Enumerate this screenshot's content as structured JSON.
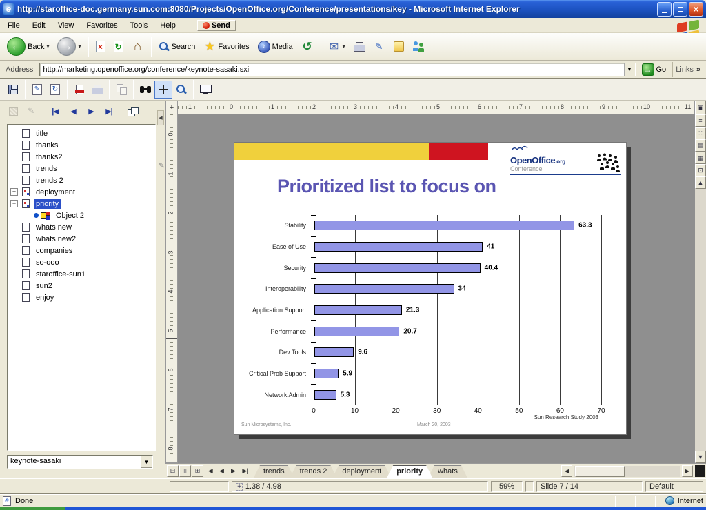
{
  "window": {
    "title": "http://staroffice-doc.germany.sun.com:8080/Projects/OpenOffice.org/Conference/presentations/key - Microsoft Internet Explorer"
  },
  "menu": {
    "items": [
      "File",
      "Edit",
      "View",
      "Favorites",
      "Tools",
      "Help"
    ],
    "send_label": "Send"
  },
  "ie_toolbar": {
    "buttons": [
      {
        "name": "back-button",
        "icon": "back-circle-icon",
        "glyph": "←",
        "label": "Back",
        "caret": true
      },
      {
        "name": "forward-button",
        "icon": "forward-circle-icon",
        "glyph": "→",
        "caret": true
      },
      {
        "sep": true
      },
      {
        "name": "stop-button",
        "icon": "stop-icon",
        "glyph": "×"
      },
      {
        "name": "refresh-button",
        "icon": "refresh-icon",
        "glyph": "↻"
      },
      {
        "name": "home-button",
        "icon": "home-icon",
        "glyph": "⌂"
      },
      {
        "sep": true
      },
      {
        "name": "search-button",
        "icon": "magnifier-icon",
        "label": "Search"
      },
      {
        "name": "favorites-button",
        "icon": "star-icon",
        "glyph": "★",
        "label": "Favorites"
      },
      {
        "name": "media-button",
        "icon": "media-globe-icon",
        "glyph": "♪",
        "label": "Media"
      },
      {
        "name": "history-button",
        "icon": "history-icon",
        "glyph": "↺"
      },
      {
        "sep": true
      },
      {
        "name": "mail-button",
        "icon": "mail-icon",
        "glyph": "✉",
        "caret": true
      },
      {
        "name": "print-button",
        "icon": "printer-icon"
      },
      {
        "name": "edit-button",
        "icon": "edit-page-icon",
        "glyph": "✎"
      },
      {
        "name": "discuss-button",
        "icon": "note-icon"
      },
      {
        "name": "messenger-button",
        "icon": "messenger-icon"
      }
    ]
  },
  "address_bar": {
    "label": "Address",
    "url": "http://marketing.openoffice.org/conference/keynote-sasaki.sxi",
    "go_label": "Go",
    "links_label": "Links",
    "chevron": "»",
    "drop_glyph": "▼",
    "go_glyph": "→"
  },
  "so_toolbar_top": {
    "buttons": [
      {
        "name": "save-button",
        "icon": "floppy-icon"
      },
      {
        "sep": true
      },
      {
        "name": "edit-file-button",
        "icon": "edit-file-icon",
        "glyph": "✎"
      },
      {
        "name": "reload-button",
        "icon": "reload-icon",
        "glyph": "↻"
      },
      {
        "sep": true
      },
      {
        "name": "export-pdf-button",
        "icon": "pdf-icon"
      },
      {
        "name": "print-file-button",
        "icon": "printer-icon"
      },
      {
        "sep": true
      },
      {
        "name": "copy-button",
        "icon": "copy-icon",
        "disabled": true
      },
      {
        "sep": true
      },
      {
        "name": "find-button",
        "icon": "binoculars-icon"
      },
      {
        "name": "pan-button",
        "icon": "crosshair-icon",
        "active": true
      },
      {
        "name": "zoom-button",
        "icon": "magnifier-icon"
      },
      {
        "sep": true
      },
      {
        "name": "presentation-button",
        "icon": "screen-icon"
      }
    ]
  },
  "so_toolbar_nav": {
    "buttons": [
      {
        "name": "fill-pattern-button",
        "icon": "fill-pattern-icon",
        "disabled": true
      },
      {
        "name": "edit-mode-button",
        "icon": "pencil-icon",
        "glyph": "✎",
        "disabled": true
      },
      {
        "sep": true
      },
      {
        "name": "first-slide-button",
        "icon": "first-icon",
        "glyph": "|◀"
      },
      {
        "name": "previous-slide-button",
        "icon": "prev-icon",
        "glyph": "◀"
      },
      {
        "name": "next-slide-button",
        "icon": "next-icon",
        "glyph": "▶"
      },
      {
        "name": "last-slide-button",
        "icon": "last-icon",
        "glyph": "▶|"
      },
      {
        "sep": true
      },
      {
        "name": "new-window-button",
        "icon": "new-window-icon"
      }
    ]
  },
  "sidebar": {
    "items": [
      {
        "label": "title",
        "icon": "page-icon"
      },
      {
        "label": "thanks",
        "icon": "page-icon"
      },
      {
        "label": "thanks2",
        "icon": "page-icon"
      },
      {
        "label": "trends",
        "icon": "page-icon"
      },
      {
        "label": "trends 2",
        "icon": "page-icon"
      },
      {
        "label": "deployment",
        "icon": "page-objects-icon",
        "expander": "plus"
      },
      {
        "label": "priority",
        "icon": "page-objects-icon",
        "expander": "minus",
        "selected": true
      },
      {
        "label": "Object 2",
        "icon": "ole-object-icon",
        "child": true
      },
      {
        "label": "whats new",
        "icon": "page-icon"
      },
      {
        "label": "whats new2",
        "icon": "page-icon"
      },
      {
        "label": "companies",
        "icon": "page-icon"
      },
      {
        "label": "so-ooo",
        "icon": "page-icon"
      },
      {
        "label": "staroffice-sun1",
        "icon": "page-icon"
      },
      {
        "label": "sun2",
        "icon": "page-icon"
      },
      {
        "label": "enjoy",
        "icon": "page-icon"
      }
    ],
    "document_combo": "keynote-sasaki",
    "combo_drop_glyph": "▼"
  },
  "slide": {
    "title": "Prioritized list to focus on",
    "title_color": "#5a55b2",
    "band_yellow": "#f0d03c",
    "band_red": "#cf1420",
    "logo": {
      "brand": "OpenOffice",
      "suffix": ".org",
      "subtitle": "Conference"
    },
    "footer_left": "Sun Microsystems, Inc.",
    "footer_center": "March 20, 2003",
    "note_right": "Sun Research Study 2003"
  },
  "chart_data": {
    "type": "bar",
    "orientation": "horizontal",
    "title": "Prioritized list to focus on",
    "categories": [
      "Stability",
      "Ease of Use",
      "Security",
      "Interoperability",
      "Application Support",
      "Performance",
      "Dev Tools",
      "Critical Prob Support",
      "Network Admin"
    ],
    "values": [
      63.3,
      41,
      40.4,
      34,
      21.3,
      20.7,
      9.6,
      5.9,
      5.3
    ],
    "value_labels": [
      "63.3",
      "41",
      "40.4",
      "34",
      "21.3",
      "20.7",
      "9.6",
      "5.9",
      "5.3"
    ],
    "xlim": [
      0,
      70
    ],
    "xticks": [
      0,
      10,
      20,
      30,
      40,
      50,
      60,
      70
    ],
    "xlabel": "",
    "ylabel": "",
    "bar_color": "#9295e6",
    "grid": true,
    "legend": null
  },
  "doc_tabs": {
    "view_buttons": [
      {
        "name": "tab-bar-view-button-1",
        "glyph": "⊟"
      },
      {
        "name": "tab-bar-view-button-2",
        "glyph": "▯"
      },
      {
        "name": "tab-bar-view-button-3",
        "glyph": "⊞"
      }
    ],
    "nav": [
      {
        "name": "first-tab-button",
        "glyph": "|◀"
      },
      {
        "name": "prev-tab-button",
        "glyph": "◀"
      },
      {
        "name": "next-tab-button",
        "glyph": "▶"
      },
      {
        "name": "last-tab-button",
        "glyph": "▶|"
      }
    ],
    "tabs": [
      "trends",
      "trends 2",
      "deployment",
      "priority",
      "whats"
    ],
    "active_tab": "priority",
    "scroll_left_glyph": "◀",
    "scroll_right_glyph": "▶"
  },
  "view_strip": {
    "top_button": {
      "name": "drawing-view-button",
      "glyph": "▣"
    },
    "buttons": [
      {
        "name": "outline-view-button",
        "glyph": "≡"
      },
      {
        "name": "slides-view-button",
        "glyph": "∷"
      },
      {
        "name": "notes-view-button",
        "glyph": "▤"
      },
      {
        "name": "handout-view-button",
        "glyph": "▦"
      },
      {
        "name": "slide-show-button",
        "glyph": "⊡"
      }
    ],
    "scroll_up_glyph": "▲",
    "scroll_down_glyph": "▼"
  },
  "so_statusbar": {
    "position": "1.38 / 4.98",
    "zoom_level": "59%",
    "slide_indicator": "Slide 7 / 14",
    "page_style": "Default"
  },
  "ie_statusbar": {
    "status": "Done",
    "zone": "Internet"
  },
  "rulers": {
    "horizontal": [
      "1",
      "0",
      "1",
      "2",
      "3",
      "4",
      "5",
      "6",
      "7",
      "8",
      "9",
      "10",
      "11"
    ],
    "vertical": [
      "0",
      "1",
      "2",
      "3",
      "4",
      "5",
      "6",
      "7",
      "8"
    ]
  }
}
